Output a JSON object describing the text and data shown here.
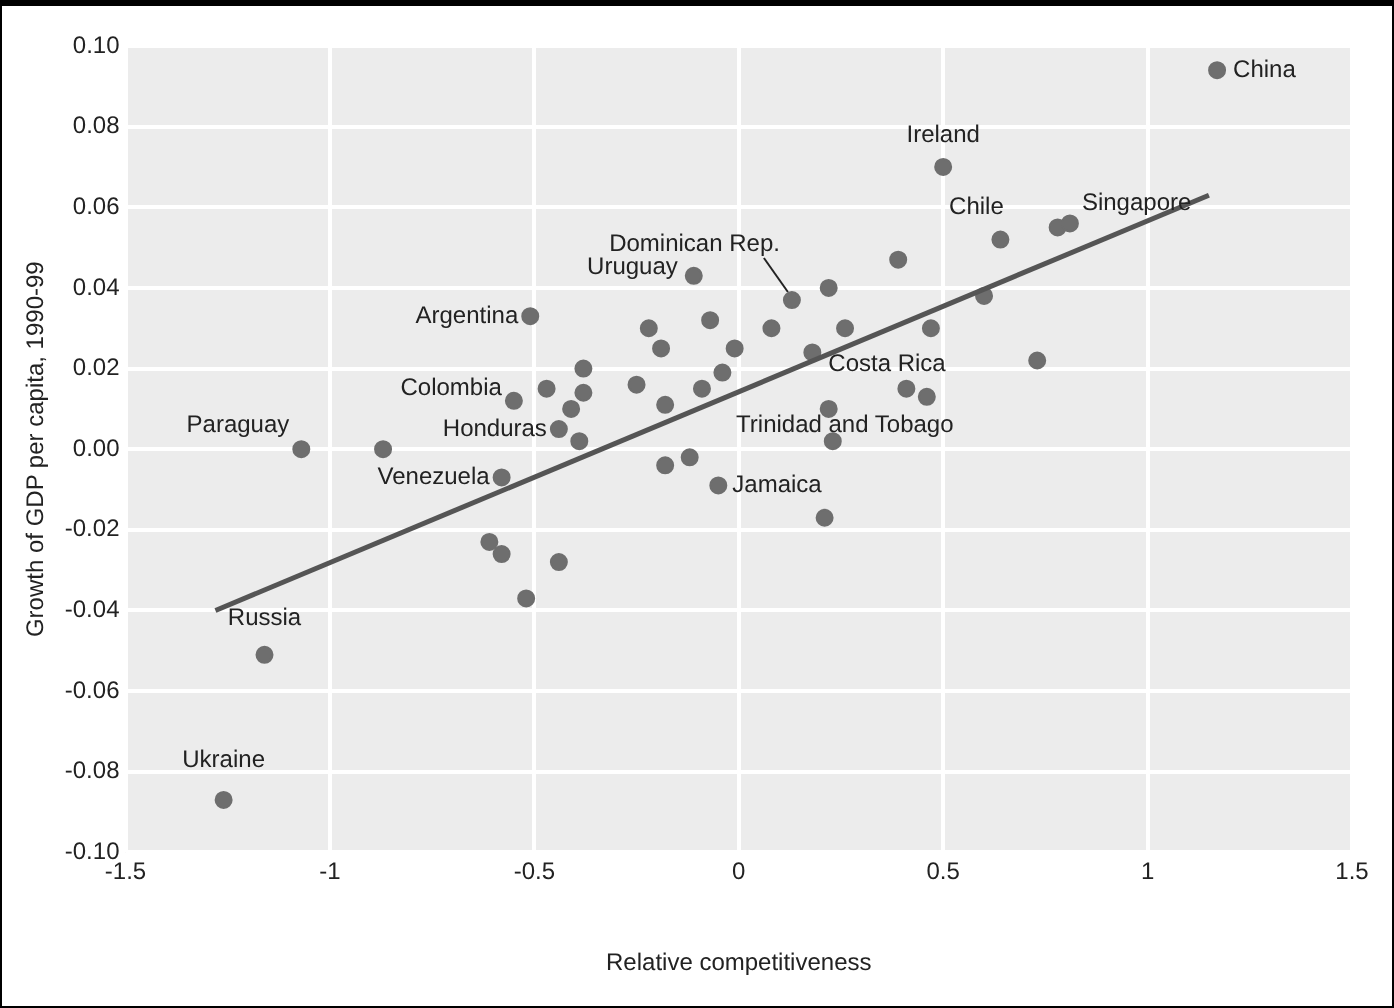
{
  "chart_data": {
    "type": "scatter",
    "xlabel": "Relative competitiveness",
    "ylabel": "Growth of GDP per capita, 1990-99",
    "xlim": [
      -1.5,
      1.5
    ],
    "xticks": [
      -1.5,
      -1,
      -0.5,
      0,
      0.5,
      1,
      1.5
    ],
    "ylim": [
      -0.1,
      0.1
    ],
    "yticks": [
      {
        "value": -0.1,
        "label": "-0.10"
      },
      {
        "value": -0.08,
        "label": "-0.08"
      },
      {
        "value": -0.06,
        "label": "-0.06"
      },
      {
        "value": -0.04,
        "label": "-0.04"
      },
      {
        "value": -0.02,
        "label": "-0.02"
      },
      {
        "value": 0,
        "label": "0.00"
      },
      {
        "value": 0.02,
        "label": "0.02"
      },
      {
        "value": 0.04,
        "label": "0.04"
      },
      {
        "value": 0.06,
        "label": "0.06"
      },
      {
        "value": 0.08,
        "label": "0.08"
      },
      {
        "value": 0.1,
        "label": "0.10"
      }
    ],
    "grid": true,
    "legend": false,
    "marker": "circle",
    "series": [
      {
        "type": "scatter",
        "color": "#6e6e6e",
        "x": [
          1.17,
          0.5,
          0.64,
          0.78,
          0.81,
          0.39,
          0.13,
          0.22,
          0.6,
          0.73,
          0.08,
          0.26,
          0.41,
          0.46,
          0.22,
          0.47,
          0.18,
          -0.11,
          -0.07,
          -0.51,
          -0.22,
          -0.19,
          -0.01,
          -0.38,
          -0.47,
          -0.25,
          -0.38,
          -0.09,
          -0.04,
          -0.55,
          -0.18,
          -0.41,
          -0.44,
          -1.07,
          -0.87,
          -0.39,
          -0.58,
          -0.18,
          -0.12,
          -0.05,
          -0.61,
          -0.58,
          -0.44,
          -0.52,
          -1.16,
          -1.26,
          0.21,
          0.23
        ],
        "values": [
          0.094,
          0.07,
          0.052,
          0.055,
          0.056,
          0.047,
          0.037,
          0.04,
          0.038,
          0.022,
          0.03,
          0.03,
          0.015,
          0.013,
          0.01,
          0.03,
          0.024,
          0.043,
          0.032,
          0.033,
          0.03,
          0.025,
          0.025,
          0.02,
          0.015,
          0.016,
          0.014,
          0.015,
          0.019,
          0.012,
          0.011,
          0.01,
          0.005,
          0.0,
          0.0,
          0.002,
          -0.007,
          -0.004,
          -0.002,
          -0.009,
          -0.023,
          -0.026,
          -0.028,
          -0.037,
          -0.051,
          -0.087,
          -0.017,
          0.002
        ]
      },
      {
        "type": "line",
        "color": "#555555",
        "marker": "none",
        "x": [
          -1.28,
          1.15
        ],
        "values": [
          -0.04,
          0.063
        ]
      }
    ],
    "annotations": [
      {
        "text": "China",
        "x": 1.17,
        "y": 0.094
      },
      {
        "text": "Ireland",
        "x": 0.5,
        "y": 0.07
      },
      {
        "text": "Chile",
        "x": 0.64,
        "y": 0.052
      },
      {
        "text": "Singapore",
        "x": 0.81,
        "y": 0.056
      },
      {
        "text": "Dominican Rep.",
        "x": 0.13,
        "y": 0.037
      },
      {
        "text": "Uruguay",
        "x": -0.11,
        "y": 0.043
      },
      {
        "text": "Argentina",
        "x": -0.51,
        "y": 0.033
      },
      {
        "text": "Colombia",
        "x": -0.55,
        "y": 0.012
      },
      {
        "text": "Paraguay",
        "x": -1.07,
        "y": 0.0
      },
      {
        "text": "Honduras",
        "x": -0.44,
        "y": 0.005
      },
      {
        "text": "Venezuela",
        "x": -0.58,
        "y": -0.007
      },
      {
        "text": "Costa Rica",
        "x": 0.18,
        "y": 0.024
      },
      {
        "text": "Trinidad and Tobago",
        "x": 0.23,
        "y": 0.002
      },
      {
        "text": "Jamaica",
        "x": -0.05,
        "y": -0.009
      },
      {
        "text": "Russia",
        "x": -1.16,
        "y": -0.051
      },
      {
        "text": "Ukraine",
        "x": -1.26,
        "y": -0.087
      }
    ]
  }
}
